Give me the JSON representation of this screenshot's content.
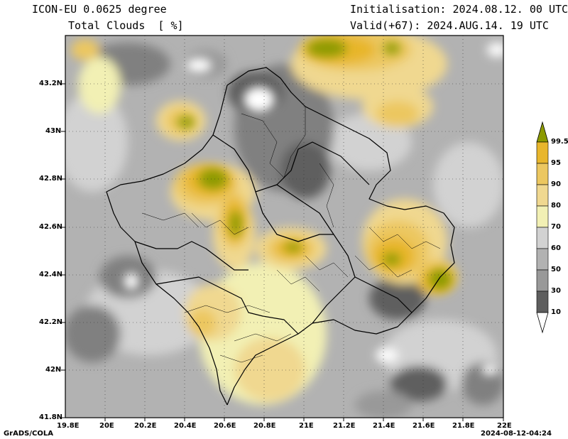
{
  "header": {
    "model": "ICON-EU 0.0625 degree",
    "field": "Total Clouds  [ %]",
    "init": "Initialisation: 2024.08.12. 00 UTC",
    "valid": "Valid(+67): 2024.AUG.14. 19 UTC"
  },
  "axes": {
    "lat_labels": [
      "43.2N",
      "43N",
      "42.8N",
      "42.6N",
      "42.4N",
      "42.2N",
      "42N",
      "41.8N"
    ],
    "lon_labels": [
      "19.8E",
      "20E",
      "20.2E",
      "20.4E",
      "20.6E",
      "20.8E",
      "21E",
      "21.2E",
      "21.4E",
      "21.6E",
      "21.8E",
      "22E"
    ]
  },
  "colorbar": {
    "labels": [
      "99.5",
      "95",
      "90",
      "80",
      "70",
      "60",
      "50",
      "30",
      "10"
    ],
    "colors": [
      "#8c9a00",
      "#e8b62c",
      "#ecc760",
      "#f0d890",
      "#f2f0b4",
      "#d2d2d2",
      "#b2b2b2",
      "#999999",
      "#808080",
      "#5e5e5e"
    ]
  },
  "footer": {
    "credit": "GrADS/COLA",
    "timestamp": "2024-08-12-04:24"
  }
}
